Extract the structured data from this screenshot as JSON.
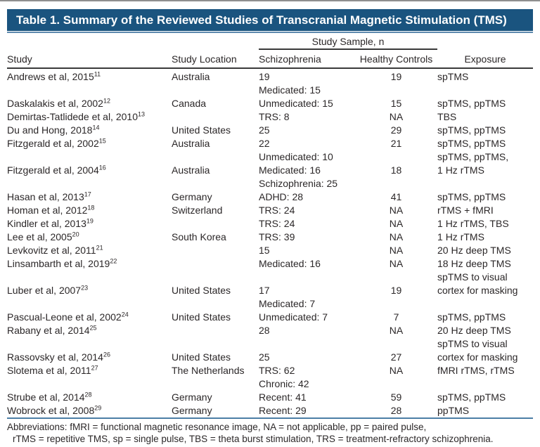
{
  "title": "Table 1. Summary of the Reviewed Studies of Transcranial Magnetic Stimulation (TMS)",
  "header": {
    "study": "Study",
    "location": "Study Location",
    "sample_group": "Study Sample, n",
    "schizophrenia": "Schizophrenia",
    "healthy_controls": "Healthy Controls",
    "exposure": "Exposure"
  },
  "rows": [
    {
      "study": "Andrews et al, 2015",
      "ref": "11",
      "location": "Australia",
      "schizophrenia": [
        "19"
      ],
      "healthy": "19",
      "exposure": [
        "spTMS"
      ]
    },
    {
      "study": "Daskalakis et al, 2002",
      "ref": "12",
      "location": "Canada",
      "schizophrenia": [
        "Medicated: 15",
        "Unmedicated: 15"
      ],
      "healthy": "15",
      "exposure": [
        "spTMS, ppTMS"
      ]
    },
    {
      "study": "Demirtas-Tatlidede et al, 2010",
      "ref": "13",
      "location": "",
      "schizophrenia": [
        "TRS: 8"
      ],
      "healthy": "NA",
      "exposure": [
        "TBS"
      ]
    },
    {
      "study": "Du and Hong, 2018",
      "ref": "14",
      "location": "United States",
      "schizophrenia": [
        "25"
      ],
      "healthy": "29",
      "exposure": [
        "spTMS, ppTMS"
      ]
    },
    {
      "study": "Fitzgerald et al, 2002",
      "ref": "15",
      "location": "Australia",
      "schizophrenia": [
        "22"
      ],
      "healthy": "21",
      "exposure": [
        "spTMS, ppTMS"
      ]
    },
    {
      "study": "Fitzgerald et al, 2004",
      "ref": "16",
      "location": "Australia",
      "schizophrenia": [
        "Unmedicated: 10",
        "Medicated: 16"
      ],
      "healthy": "18",
      "exposure": [
        "spTMS, ppTMS,",
        "1 Hz rTMS"
      ]
    },
    {
      "study": "Hasan et al, 2013",
      "ref": "17",
      "location": "Germany",
      "schizophrenia": [
        "Schizophrenia: 25",
        "ADHD: 28"
      ],
      "healthy": "41",
      "exposure": [
        "spTMS, ppTMS"
      ]
    },
    {
      "study": "Homan et al, 2012",
      "ref": "18",
      "location": "Switzerland",
      "schizophrenia": [
        "TRS: 24"
      ],
      "healthy": "NA",
      "exposure": [
        "rTMS + fMRI"
      ]
    },
    {
      "study": "Kindler et al, 2013",
      "ref": "19",
      "location": "",
      "schizophrenia": [
        "TRS: 24"
      ],
      "healthy": "NA",
      "exposure": [
        "1 Hz rTMS, TBS"
      ]
    },
    {
      "study": "Lee et al, 2005",
      "ref": "20",
      "location": "South Korea",
      "schizophrenia": [
        "TRS: 39"
      ],
      "healthy": "NA",
      "exposure": [
        "1 Hz rTMS"
      ]
    },
    {
      "study": "Levkovitz et al, 2011",
      "ref": "21",
      "location": "",
      "schizophrenia": [
        "15"
      ],
      "healthy": "NA",
      "exposure": [
        "20 Hz deep TMS"
      ]
    },
    {
      "study": "Linsambarth et al, 2019",
      "ref": "22",
      "location": "",
      "schizophrenia": [
        "Medicated: 16"
      ],
      "healthy": "NA",
      "exposure": [
        "18 Hz deep TMS"
      ]
    },
    {
      "study": "Luber et al, 2007",
      "ref": "23",
      "location": "United States",
      "schizophrenia": [
        "17"
      ],
      "healthy": "19",
      "exposure": [
        "spTMS to visual",
        "cortex for masking"
      ]
    },
    {
      "study": "Pascual-Leone et al, 2002",
      "ref": "24",
      "location": "United States",
      "schizophrenia": [
        "Medicated: 7",
        "Unmedicated: 7"
      ],
      "healthy": "7",
      "exposure": [
        "spTMS, ppTMS"
      ]
    },
    {
      "study": "Rabany et al, 2014",
      "ref": "25",
      "location": "",
      "schizophrenia": [
        "28"
      ],
      "healthy": "NA",
      "exposure": [
        "20 Hz deep TMS"
      ]
    },
    {
      "study": "Rassovsky et al, 2014",
      "ref": "26",
      "location": "United States",
      "schizophrenia": [
        "25"
      ],
      "healthy": "27",
      "exposure": [
        "spTMS to visual",
        "cortex for masking"
      ]
    },
    {
      "study": "Slotema et al, 2011",
      "ref": "27",
      "location": "The Netherlands",
      "schizophrenia": [
        "TRS: 62"
      ],
      "healthy": "NA",
      "exposure": [
        "fMRI rTMS, rTMS"
      ]
    },
    {
      "study": "Strube et al, 2014",
      "ref": "28",
      "location": "Germany",
      "schizophrenia": [
        "Chronic: 42",
        "Recent: 41"
      ],
      "healthy": "59",
      "exposure": [
        "spTMS, ppTMS"
      ]
    },
    {
      "study": "Wobrock et al, 2008",
      "ref": "29",
      "location": "Germany",
      "schizophrenia": [
        "Recent: 29"
      ],
      "healthy": "28",
      "exposure": [
        "ppTMS"
      ]
    }
  ],
  "footnote": {
    "line1": "Abbreviations: fMRI = functional magnetic resonance image, NA = not applicable, pp = paired pulse,",
    "line2": "rTMS = repetitive TMS, sp = single pulse, TBS = theta burst stimulation, TRS = treatment-refractory schizophrenia."
  },
  "colors": {
    "title_bar_background": "#1a547f",
    "title_text": "#ffffff",
    "accent_rule_blue": "#4c7ea6",
    "header_rule_dark": "#3a3a3a",
    "body_text": "#2b2728"
  }
}
